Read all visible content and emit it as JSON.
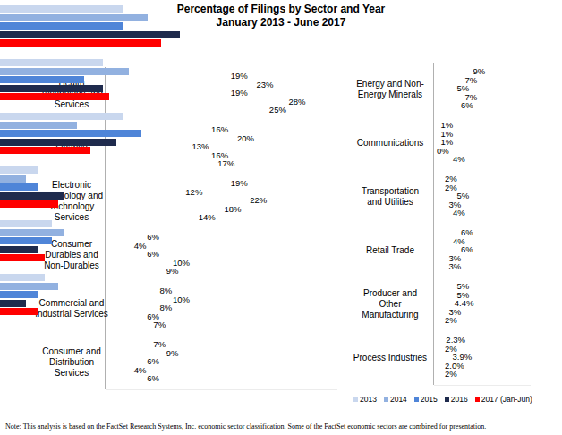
{
  "chart_data": [
    {
      "type": "bar",
      "title": "Percentage of Filings by Sector and Year",
      "subtitle": "January 2013 - June 2017",
      "orientation": "horizontal",
      "data_labels": true,
      "tick_labels": "y",
      "categories": [
        "Health\nTechnology and\nServices",
        "Finance",
        "Electronic\nTechnology and\nTechnology\nServices",
        "Consumer\nDurables and\nNon-Durables",
        "Commercial and\nIndustrial Services",
        "Consumer and\nDistribution\nServices"
      ],
      "xlim": [
        0,
        36
      ],
      "series": [
        {
          "color": "#c9d7ee",
          "values": [
            19,
            16,
            19,
            6,
            8,
            7
          ],
          "value_labels": [
            "19%",
            "16%",
            "19%",
            "6%",
            "8%",
            "7%"
          ]
        },
        {
          "color": "#92b1e0",
          "values": [
            23,
            20,
            12,
            4,
            10,
            9
          ],
          "value_labels": [
            "23%",
            "20%",
            "12%",
            "4%",
            "10%",
            "9%"
          ]
        },
        {
          "color": "#4f85d8",
          "values": [
            19,
            13,
            22,
            6,
            8,
            6
          ],
          "value_labels": [
            "19%",
            "13%",
            "22%",
            "6%",
            "8%",
            "6%"
          ]
        },
        {
          "color": "#1f2b4d",
          "values": [
            28,
            16,
            18,
            10,
            6,
            4
          ],
          "value_labels": [
            "28%",
            "16%",
            "18%",
            "10%",
            "6%",
            "4%"
          ]
        },
        {
          "color": "#ff0000",
          "values": [
            25,
            17,
            14,
            9,
            7,
            6
          ],
          "value_labels": [
            "25%",
            "17%",
            "14%",
            "9%",
            "7%",
            "6%"
          ]
        }
      ]
    },
    {
      "type": "bar",
      "orientation": "horizontal",
      "data_labels": true,
      "tick_labels": "y",
      "legend": "bottom",
      "annotations": [
        "Note: This analysis is based on the FactSet Research Systems, Inc. economic sector classification. Some of the FactSet economic sectors are combined for presentation."
      ],
      "categories": [
        "Energy and Non-\nEnergy Minerals",
        "Communications",
        "Transportation\nand Utilities",
        "Retail Trade",
        "Producer and\nOther\nManufacturing",
        "Process Industries"
      ],
      "xlim": [
        0,
        24
      ],
      "series": [
        {
          "name": "2013",
          "color": "#c9d7ee",
          "values": [
            9,
            1,
            2,
            6,
            5,
            2.3
          ],
          "value_labels": [
            "9%",
            "1%",
            "2%",
            "6%",
            "5%",
            "2.3%"
          ]
        },
        {
          "name": "2014",
          "color": "#92b1e0",
          "values": [
            7,
            1,
            2,
            4,
            5,
            2
          ],
          "value_labels": [
            "7%",
            "1%",
            "2%",
            "4%",
            "5%",
            "2%"
          ]
        },
        {
          "name": "2015",
          "color": "#4f85d8",
          "values": [
            5,
            1,
            5,
            6,
            4.4,
            3.9
          ],
          "value_labels": [
            "5%",
            "1%",
            "5%",
            "6%",
            "4.4%",
            "3.9%"
          ]
        },
        {
          "name": "2016",
          "color": "#1f2b4d",
          "values": [
            7,
            0,
            3,
            3,
            3,
            2.0
          ],
          "value_labels": [
            "7%",
            "0%",
            "3%",
            "3%",
            "3%",
            "2.0%"
          ]
        },
        {
          "name": "2017 (Jan-Jun)",
          "color": "#ff0000",
          "values": [
            6,
            4,
            4,
            3,
            2,
            2
          ],
          "value_labels": [
            "6%",
            "4%",
            "4%",
            "3%",
            "2%",
            "2%"
          ]
        }
      ]
    }
  ]
}
